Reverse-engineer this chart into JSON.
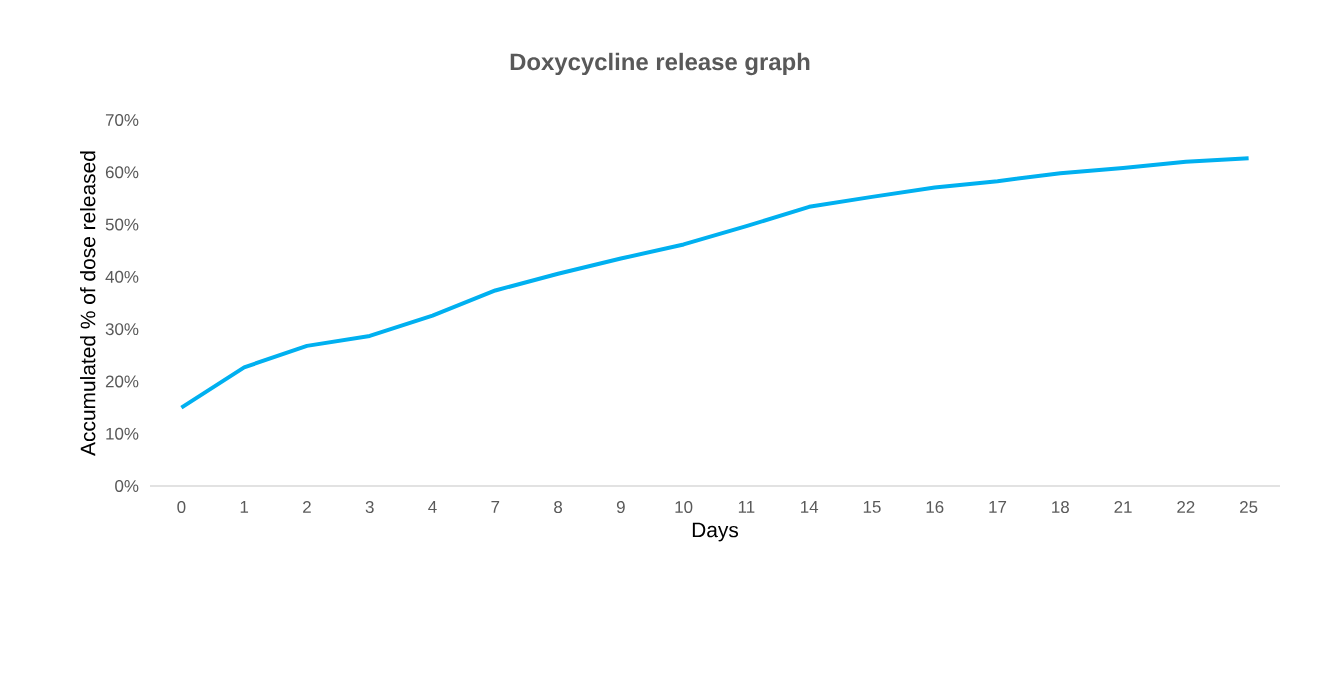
{
  "chart_data": {
    "type": "line",
    "title": "Doxycycline release graph",
    "xlabel": "Days",
    "ylabel": "Accumulated % of dose released",
    "categories": [
      "0",
      "1",
      "2",
      "3",
      "4",
      "7",
      "8",
      "9",
      "10",
      "11",
      "14",
      "15",
      "16",
      "17",
      "18",
      "21",
      "22",
      "25"
    ],
    "series": [
      {
        "color": "#00b0f0",
        "values": [
          15.0,
          22.7,
          26.8,
          28.7,
          32.6,
          37.4,
          40.6,
          43.5,
          46.2,
          49.7,
          53.4,
          55.3,
          57.1,
          58.3,
          59.8,
          60.8,
          62.0,
          62.7
        ]
      }
    ],
    "ylim": [
      0,
      70
    ],
    "yticks": [
      {
        "value": 0,
        "label": "0%"
      },
      {
        "value": 10,
        "label": "10%"
      },
      {
        "value": 20,
        "label": "20%"
      },
      {
        "value": 30,
        "label": "30%"
      },
      {
        "value": 40,
        "label": "40%"
      },
      {
        "value": 50,
        "label": "50%"
      },
      {
        "value": 60,
        "label": "60%"
      },
      {
        "value": 70,
        "label": "70%"
      }
    ]
  }
}
